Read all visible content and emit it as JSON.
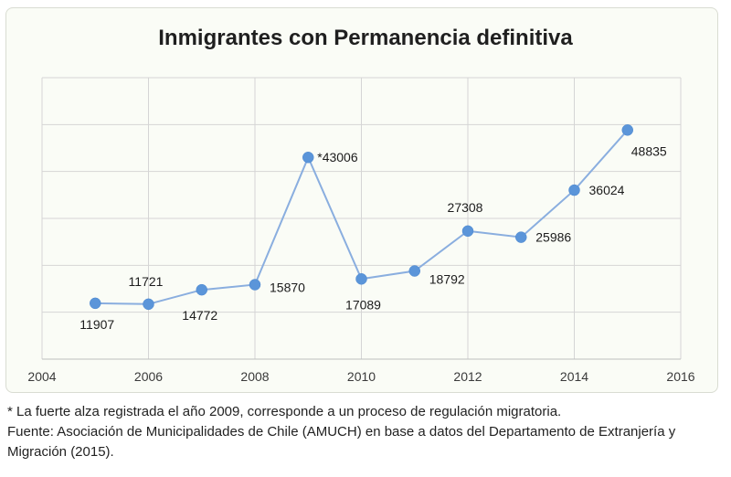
{
  "colors": {
    "line": "#8aaedf",
    "marker": "#5b95d9",
    "grid": "#d5d5d5",
    "background": "#fafcf6"
  },
  "chart_data": {
    "type": "line",
    "title": "Inmigrantes con Permanencia definitiva",
    "xlabel": "",
    "ylabel": "",
    "xlim": [
      2004,
      2016
    ],
    "ylim": [
      0,
      60000
    ],
    "x_ticks": [
      2004,
      2006,
      2008,
      2010,
      2012,
      2014,
      2016
    ],
    "y_gridlines": [
      10000,
      20000,
      30000,
      40000,
      50000,
      60000
    ],
    "grid": true,
    "legend": "none",
    "series": [
      {
        "x": [
          2005,
          2006,
          2007,
          2008,
          2009,
          2010,
          2011,
          2012,
          2013,
          2014,
          2015
        ],
        "values": [
          11907,
          11721,
          14772,
          15870,
          43006,
          17089,
          18792,
          27308,
          25986,
          36024,
          48835
        ],
        "labels": [
          "11907",
          "11721",
          "14772",
          "15870",
          "*43006",
          "17089",
          "18792",
          "27308",
          "25986",
          "36024",
          "48835"
        ]
      }
    ]
  },
  "notes": {
    "footnote": "* La fuerte alza registrada el año 2009, corresponde a un proceso de regulación migratoria.",
    "source": "Fuente: Asociación de Municipalidades de Chile (AMUCH) en base a datos del Departamento de Extranjería y Migración (2015)."
  }
}
